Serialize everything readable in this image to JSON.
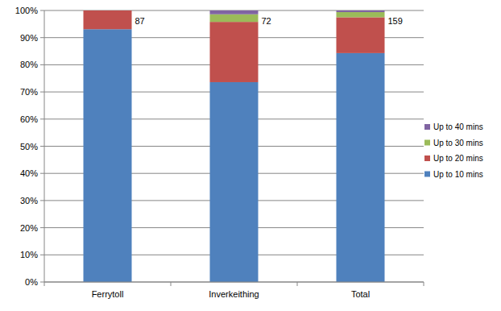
{
  "chart_data": {
    "type": "bar",
    "stacked": true,
    "grid": true,
    "legend": "right",
    "categories": [
      "Ferrytoll",
      "Inverkeithing",
      "Total"
    ],
    "series": [
      {
        "name": "Up to 10 mins",
        "color": "#4f81bd",
        "values": [
          93.1,
          73.6,
          84.3
        ]
      },
      {
        "name": "Up to 20 mins",
        "color": "#c0504d",
        "values": [
          6.9,
          22.2,
          13.2
        ]
      },
      {
        "name": "Up to 30 mins",
        "color": "#9bbb59",
        "values": [
          0,
          2.8,
          1.9
        ]
      },
      {
        "name": "Up to 40 mins",
        "color": "#8064a2",
        "values": [
          0,
          1.4,
          0.6
        ]
      }
    ],
    "sample_sizes": [
      87,
      72,
      159
    ],
    "ylim": [
      0,
      100
    ],
    "yticks": [
      {
        "value": 0,
        "label": "0%"
      },
      {
        "value": 10,
        "label": "10%"
      },
      {
        "value": 20,
        "label": "20%"
      },
      {
        "value": 30,
        "label": "30%"
      },
      {
        "value": 40,
        "label": "40%"
      },
      {
        "value": 50,
        "label": "50%"
      },
      {
        "value": 60,
        "label": "60%"
      },
      {
        "value": 70,
        "label": "70%"
      },
      {
        "value": 80,
        "label": "80%"
      },
      {
        "value": 90,
        "label": "90%"
      },
      {
        "value": 100,
        "label": "100%"
      }
    ]
  }
}
